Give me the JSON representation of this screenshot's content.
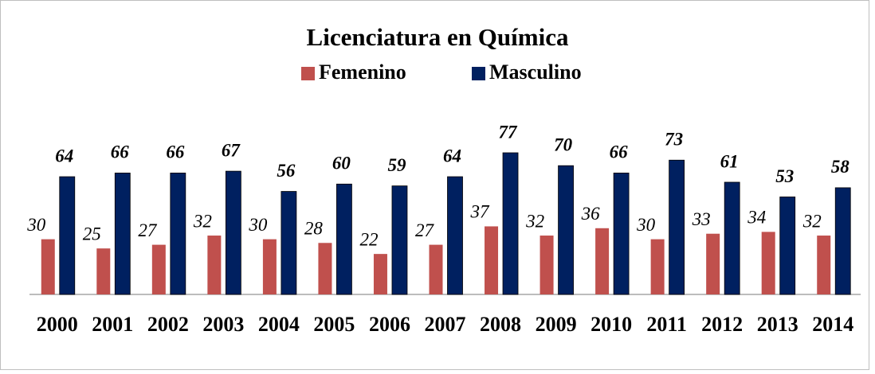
{
  "chart_data": {
    "type": "bar",
    "title": "Licenciatura en Química",
    "categories": [
      "2000",
      "2001",
      "2002",
      "2003",
      "2004",
      "2005",
      "2006",
      "2007",
      "2008",
      "2009",
      "2010",
      "2011",
      "2012",
      "2013",
      "2014"
    ],
    "series": [
      {
        "name": "Femenino",
        "color": "#c0504d",
        "values": [
          30,
          25,
          27,
          32,
          30,
          28,
          22,
          27,
          37,
          32,
          36,
          30,
          33,
          34,
          32
        ]
      },
      {
        "name": "Masculino",
        "color": "#002060",
        "values": [
          64,
          66,
          66,
          67,
          56,
          60,
          59,
          64,
          77,
          70,
          66,
          73,
          61,
          53,
          58
        ]
      }
    ],
    "legend": "top"
  }
}
